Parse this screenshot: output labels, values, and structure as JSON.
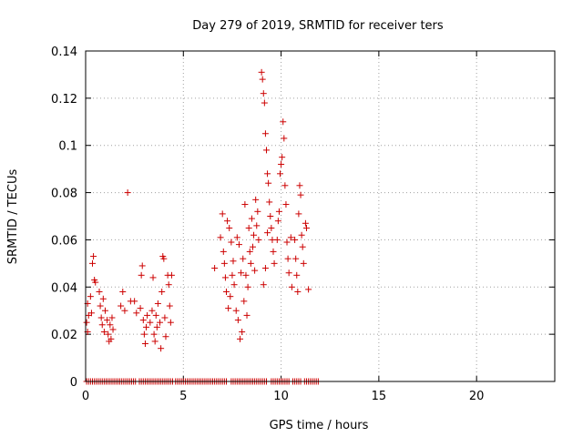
{
  "chart_data": {
    "type": "scatter",
    "title": "Day 279 of 2019, SRMTID for receiver ters",
    "xlabel": "GPS time / hours",
    "ylabel": "SRMTID / TECUs",
    "xlim": [
      0,
      24
    ],
    "ylim": [
      0,
      0.14
    ],
    "x_ticks": [
      0,
      5,
      10,
      15,
      20
    ],
    "x_tick_labels": [
      "0",
      "5",
      "10",
      "15",
      "20"
    ],
    "y_ticks": [
      0,
      0.02,
      0.04,
      0.06,
      0.08,
      0.1,
      0.12,
      0.14
    ],
    "y_tick_labels": [
      "0",
      "0.02",
      "0.04",
      "0.06",
      "0.08",
      "0.1",
      "0.12",
      "0.14"
    ],
    "grid": true,
    "marker": "+",
    "color": "#cc0000",
    "series": [
      {
        "name": "SRMTID",
        "points": [
          [
            0.05,
            0.025
          ],
          [
            0.1,
            0.021
          ],
          [
            0.1,
            0.033
          ],
          [
            0.15,
            0.028
          ],
          [
            0.25,
            0.036
          ],
          [
            0.3,
            0.029
          ],
          [
            0.35,
            0.05
          ],
          [
            0.4,
            0.053
          ],
          [
            0.45,
            0.043
          ],
          [
            0.5,
            0.042
          ],
          [
            0.7,
            0.038
          ],
          [
            0.75,
            0.032
          ],
          [
            0.8,
            0.027
          ],
          [
            0.85,
            0.024
          ],
          [
            0.9,
            0.035
          ],
          [
            0.95,
            0.021
          ],
          [
            1.0,
            0.03
          ],
          [
            1.1,
            0.026
          ],
          [
            1.15,
            0.02
          ],
          [
            1.2,
            0.017
          ],
          [
            1.25,
            0.024
          ],
          [
            1.3,
            0.018
          ],
          [
            1.35,
            0.027
          ],
          [
            1.4,
            0.022
          ],
          [
            1.8,
            0.032
          ],
          [
            1.9,
            0.038
          ],
          [
            2.0,
            0.03
          ],
          [
            2.15,
            0.08
          ],
          [
            2.3,
            0.034
          ],
          [
            2.5,
            0.034
          ],
          [
            2.6,
            0.029
          ],
          [
            2.8,
            0.031
          ],
          [
            2.85,
            0.045
          ],
          [
            2.9,
            0.049
          ],
          [
            2.95,
            0.026
          ],
          [
            3.0,
            0.02
          ],
          [
            3.05,
            0.016
          ],
          [
            3.1,
            0.023
          ],
          [
            3.15,
            0.028
          ],
          [
            3.3,
            0.025
          ],
          [
            3.4,
            0.03
          ],
          [
            3.45,
            0.044
          ],
          [
            3.5,
            0.02
          ],
          [
            3.55,
            0.017
          ],
          [
            3.6,
            0.028
          ],
          [
            3.65,
            0.023
          ],
          [
            3.7,
            0.033
          ],
          [
            3.8,
            0.025
          ],
          [
            3.85,
            0.014
          ],
          [
            3.9,
            0.038
          ],
          [
            3.95,
            0.053
          ],
          [
            4.0,
            0.052
          ],
          [
            4.05,
            0.027
          ],
          [
            4.1,
            0.019
          ],
          [
            4.2,
            0.045
          ],
          [
            4.25,
            0.041
          ],
          [
            4.3,
            0.032
          ],
          [
            4.35,
            0.025
          ],
          [
            4.4,
            0.045
          ],
          [
            6.6,
            0.048
          ],
          [
            6.9,
            0.061
          ],
          [
            7.0,
            0.071
          ],
          [
            7.05,
            0.055
          ],
          [
            7.1,
            0.05
          ],
          [
            7.15,
            0.044
          ],
          [
            7.2,
            0.038
          ],
          [
            7.25,
            0.068
          ],
          [
            7.3,
            0.031
          ],
          [
            7.35,
            0.065
          ],
          [
            7.4,
            0.036
          ],
          [
            7.45,
            0.059
          ],
          [
            7.5,
            0.045
          ],
          [
            7.55,
            0.051
          ],
          [
            7.6,
            0.041
          ],
          [
            7.7,
            0.03
          ],
          [
            7.75,
            0.061
          ],
          [
            7.8,
            0.026
          ],
          [
            7.85,
            0.058
          ],
          [
            7.9,
            0.018
          ],
          [
            7.95,
            0.046
          ],
          [
            8.0,
            0.021
          ],
          [
            8.05,
            0.052
          ],
          [
            8.1,
            0.034
          ],
          [
            8.15,
            0.075
          ],
          [
            8.2,
            0.045
          ],
          [
            8.25,
            0.028
          ],
          [
            8.3,
            0.04
          ],
          [
            8.35,
            0.065
          ],
          [
            8.4,
            0.055
          ],
          [
            8.45,
            0.05
          ],
          [
            8.5,
            0.069
          ],
          [
            8.55,
            0.057
          ],
          [
            8.6,
            0.062
          ],
          [
            8.65,
            0.047
          ],
          [
            8.7,
            0.077
          ],
          [
            8.75,
            0.066
          ],
          [
            8.8,
            0.072
          ],
          [
            8.85,
            0.06
          ],
          [
            9.0,
            0.131
          ],
          [
            9.05,
            0.128
          ],
          [
            9.1,
            0.122
          ],
          [
            9.15,
            0.118
          ],
          [
            9.2,
            0.105
          ],
          [
            9.25,
            0.098
          ],
          [
            9.3,
            0.088
          ],
          [
            9.35,
            0.084
          ],
          [
            9.4,
            0.076
          ],
          [
            9.45,
            0.07
          ],
          [
            9.5,
            0.065
          ],
          [
            9.55,
            0.06
          ],
          [
            9.6,
            0.055
          ],
          [
            9.65,
            0.05
          ],
          [
            9.1,
            0.041
          ],
          [
            9.2,
            0.048
          ],
          [
            9.3,
            0.063
          ],
          [
            9.8,
            0.06
          ],
          [
            9.85,
            0.068
          ],
          [
            9.9,
            0.072
          ],
          [
            9.95,
            0.088
          ],
          [
            10.0,
            0.092
          ],
          [
            10.05,
            0.095
          ],
          [
            10.1,
            0.11
          ],
          [
            10.15,
            0.103
          ],
          [
            10.2,
            0.083
          ],
          [
            10.25,
            0.075
          ],
          [
            10.3,
            0.059
          ],
          [
            10.35,
            0.052
          ],
          [
            10.4,
            0.046
          ],
          [
            10.5,
            0.061
          ],
          [
            10.55,
            0.04
          ],
          [
            10.7,
            0.06
          ],
          [
            10.75,
            0.052
          ],
          [
            10.8,
            0.045
          ],
          [
            10.85,
            0.038
          ],
          [
            10.9,
            0.071
          ],
          [
            10.95,
            0.083
          ],
          [
            11.0,
            0.079
          ],
          [
            11.05,
            0.062
          ],
          [
            11.1,
            0.057
          ],
          [
            11.15,
            0.05
          ],
          [
            11.25,
            0.067
          ],
          [
            11.3,
            0.065
          ],
          [
            11.4,
            0.039
          ]
        ]
      },
      {
        "name": "SRMTID (zero)",
        "x_ranges": [
          [
            0.05,
            2.55
          ],
          [
            2.75,
            4.45
          ],
          [
            4.6,
            7.25
          ],
          [
            7.45,
            9.3
          ],
          [
            9.5,
            10.45
          ],
          [
            10.6,
            11.0
          ],
          [
            11.2,
            11.9
          ]
        ],
        "x_step": 0.1,
        "y": 0
      }
    ]
  }
}
